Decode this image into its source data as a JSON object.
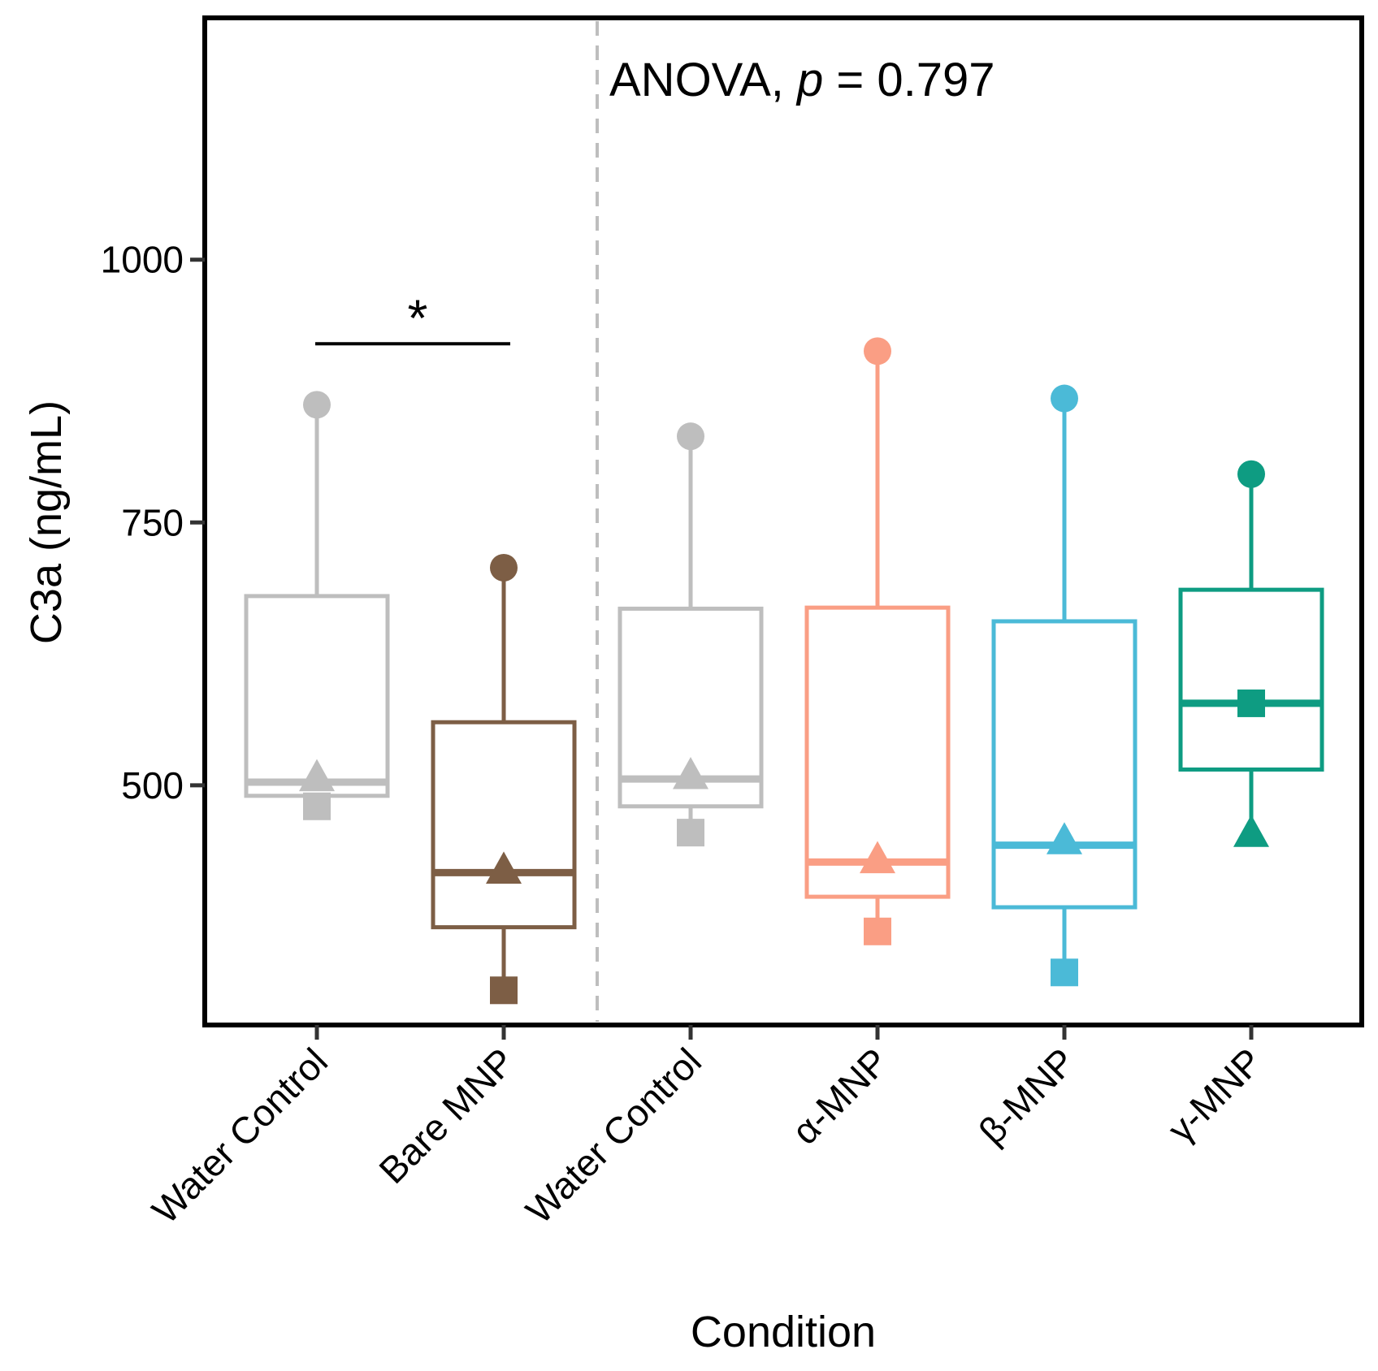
{
  "chart_data": {
    "type": "box",
    "xlabel": "Condition",
    "ylabel": "C3a (ng/mL)",
    "ylim": [
      272,
      1230
    ],
    "yticks": [
      500,
      750,
      1000
    ],
    "ytick_labels": [
      "500",
      "750",
      "1000"
    ],
    "annotation_prefix": "ANOVA, ",
    "annotation_p": "p",
    "annotation_value": " = 0.797",
    "significance": {
      "label": "*",
      "from_index": 0,
      "to_index": 1,
      "y": 920
    },
    "divider_after_index": 1,
    "groups": [
      {
        "label": "Water Control",
        "color": "#BEBEBE",
        "q1": 490,
        "median": 503,
        "q3": 680,
        "whisker_low": 490,
        "whisker_high": 862,
        "points": [
          {
            "shape": "circle",
            "value": 862
          },
          {
            "shape": "triangle",
            "value": 508
          },
          {
            "shape": "square",
            "value": 480
          }
        ]
      },
      {
        "label": "Bare MNP",
        "color": "#7D5E45",
        "q1": 365,
        "median": 417,
        "q3": 560,
        "whisker_low": 305,
        "whisker_high": 707,
        "points": [
          {
            "shape": "circle",
            "value": 707
          },
          {
            "shape": "triangle",
            "value": 420
          },
          {
            "shape": "square",
            "value": 305
          }
        ]
      },
      {
        "label": "Water Control",
        "color": "#BEBEBE",
        "q1": 480,
        "median": 506,
        "q3": 668,
        "whisker_low": 455,
        "whisker_high": 832,
        "points": [
          {
            "shape": "circle",
            "value": 832
          },
          {
            "shape": "triangle",
            "value": 510
          },
          {
            "shape": "square",
            "value": 455
          }
        ]
      },
      {
        "label": "α-MNP",
        "color": "#FA9E84",
        "q1": 394,
        "median": 427,
        "q3": 669,
        "whisker_low": 361,
        "whisker_high": 913,
        "points": [
          {
            "shape": "circle",
            "value": 913
          },
          {
            "shape": "triangle",
            "value": 430
          },
          {
            "shape": "square",
            "value": 361
          }
        ]
      },
      {
        "label": "β-MNP",
        "color": "#4BBAD7",
        "q1": 384,
        "median": 443,
        "q3": 656,
        "whisker_low": 322,
        "whisker_high": 868,
        "points": [
          {
            "shape": "circle",
            "value": 868
          },
          {
            "shape": "triangle",
            "value": 448
          },
          {
            "shape": "square",
            "value": 322
          }
        ]
      },
      {
        "label": "γ-MNP",
        "color": "#0E9C82",
        "q1": 515,
        "median": 578,
        "q3": 686,
        "whisker_low": 455,
        "whisker_high": 796,
        "points": [
          {
            "shape": "circle",
            "value": 796
          },
          {
            "shape": "triangle",
            "value": 455
          },
          {
            "shape": "square",
            "value": 578
          }
        ]
      }
    ]
  }
}
